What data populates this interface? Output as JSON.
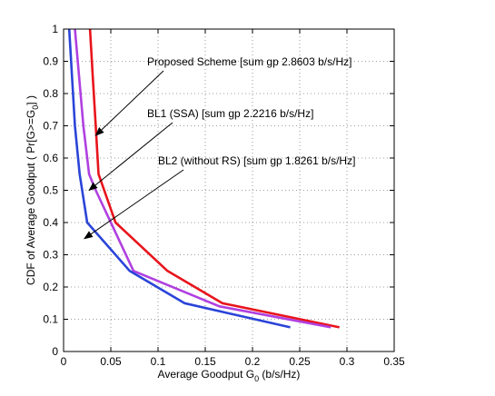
{
  "chart_data": {
    "type": "line",
    "xlabel": "Average Goodput G",
    "xlabel_sub": "0",
    "xlabel_unit": " (b/s/Hz)",
    "ylabel_parts": [
      "CDF of Average Goodput ( Pr[G>=G",
      "0",
      "] )"
    ],
    "xlim": [
      0,
      0.35
    ],
    "ylim": [
      0,
      1
    ],
    "xticks": [
      0,
      0.05,
      0.1,
      0.15,
      0.2,
      0.25,
      0.3,
      0.35
    ],
    "xtick_labels": [
      "0",
      "0.05",
      "0.1",
      "0.15",
      "0.2",
      "0.25",
      "0.3",
      "0.35"
    ],
    "yticks": [
      0,
      0.1,
      0.2,
      0.3,
      0.4,
      0.5,
      0.6,
      0.7,
      0.8,
      0.9,
      1
    ],
    "ytick_labels": [
      "0",
      "0.1",
      "0.2",
      "0.3",
      "0.4",
      "0.5",
      "0.6",
      "0.7",
      "0.8",
      "0.9",
      "1"
    ],
    "grid": true,
    "series": [
      {
        "color": "#e8141c",
        "points": [
          [
            0.028,
            1.0
          ],
          [
            0.031,
            0.85
          ],
          [
            0.034,
            0.7
          ],
          [
            0.037,
            0.55
          ],
          [
            0.055,
            0.4
          ],
          [
            0.11,
            0.25
          ],
          [
            0.168,
            0.15
          ],
          [
            0.292,
            0.075
          ]
        ]
      },
      {
        "color": "#b040e0",
        "points": [
          [
            0.012,
            1.0
          ],
          [
            0.021,
            0.7
          ],
          [
            0.027,
            0.55
          ],
          [
            0.034,
            0.5
          ],
          [
            0.074,
            0.25
          ],
          [
            0.165,
            0.14
          ],
          [
            0.283,
            0.075
          ]
        ]
      },
      {
        "color": "#2a44d8",
        "points": [
          [
            0.006,
            1.0
          ],
          [
            0.012,
            0.7
          ],
          [
            0.017,
            0.55
          ],
          [
            0.025,
            0.4
          ],
          [
            0.07,
            0.25
          ],
          [
            0.128,
            0.15
          ],
          [
            0.24,
            0.075
          ]
        ]
      }
    ],
    "annotations": [
      {
        "text": "Proposed Scheme [sum gp 2.8603 b/s/Hz]",
        "target": [
          0.034,
          0.67
        ]
      },
      {
        "text": "BL1 (SSA) [sum gp 2.2216 b/s/Hz]",
        "target": [
          0.027,
          0.5
        ]
      },
      {
        "text": "BL2 (without RS) [sum gp 1.8261 b/s/Hz]",
        "target": [
          0.022,
          0.35
        ]
      }
    ]
  }
}
